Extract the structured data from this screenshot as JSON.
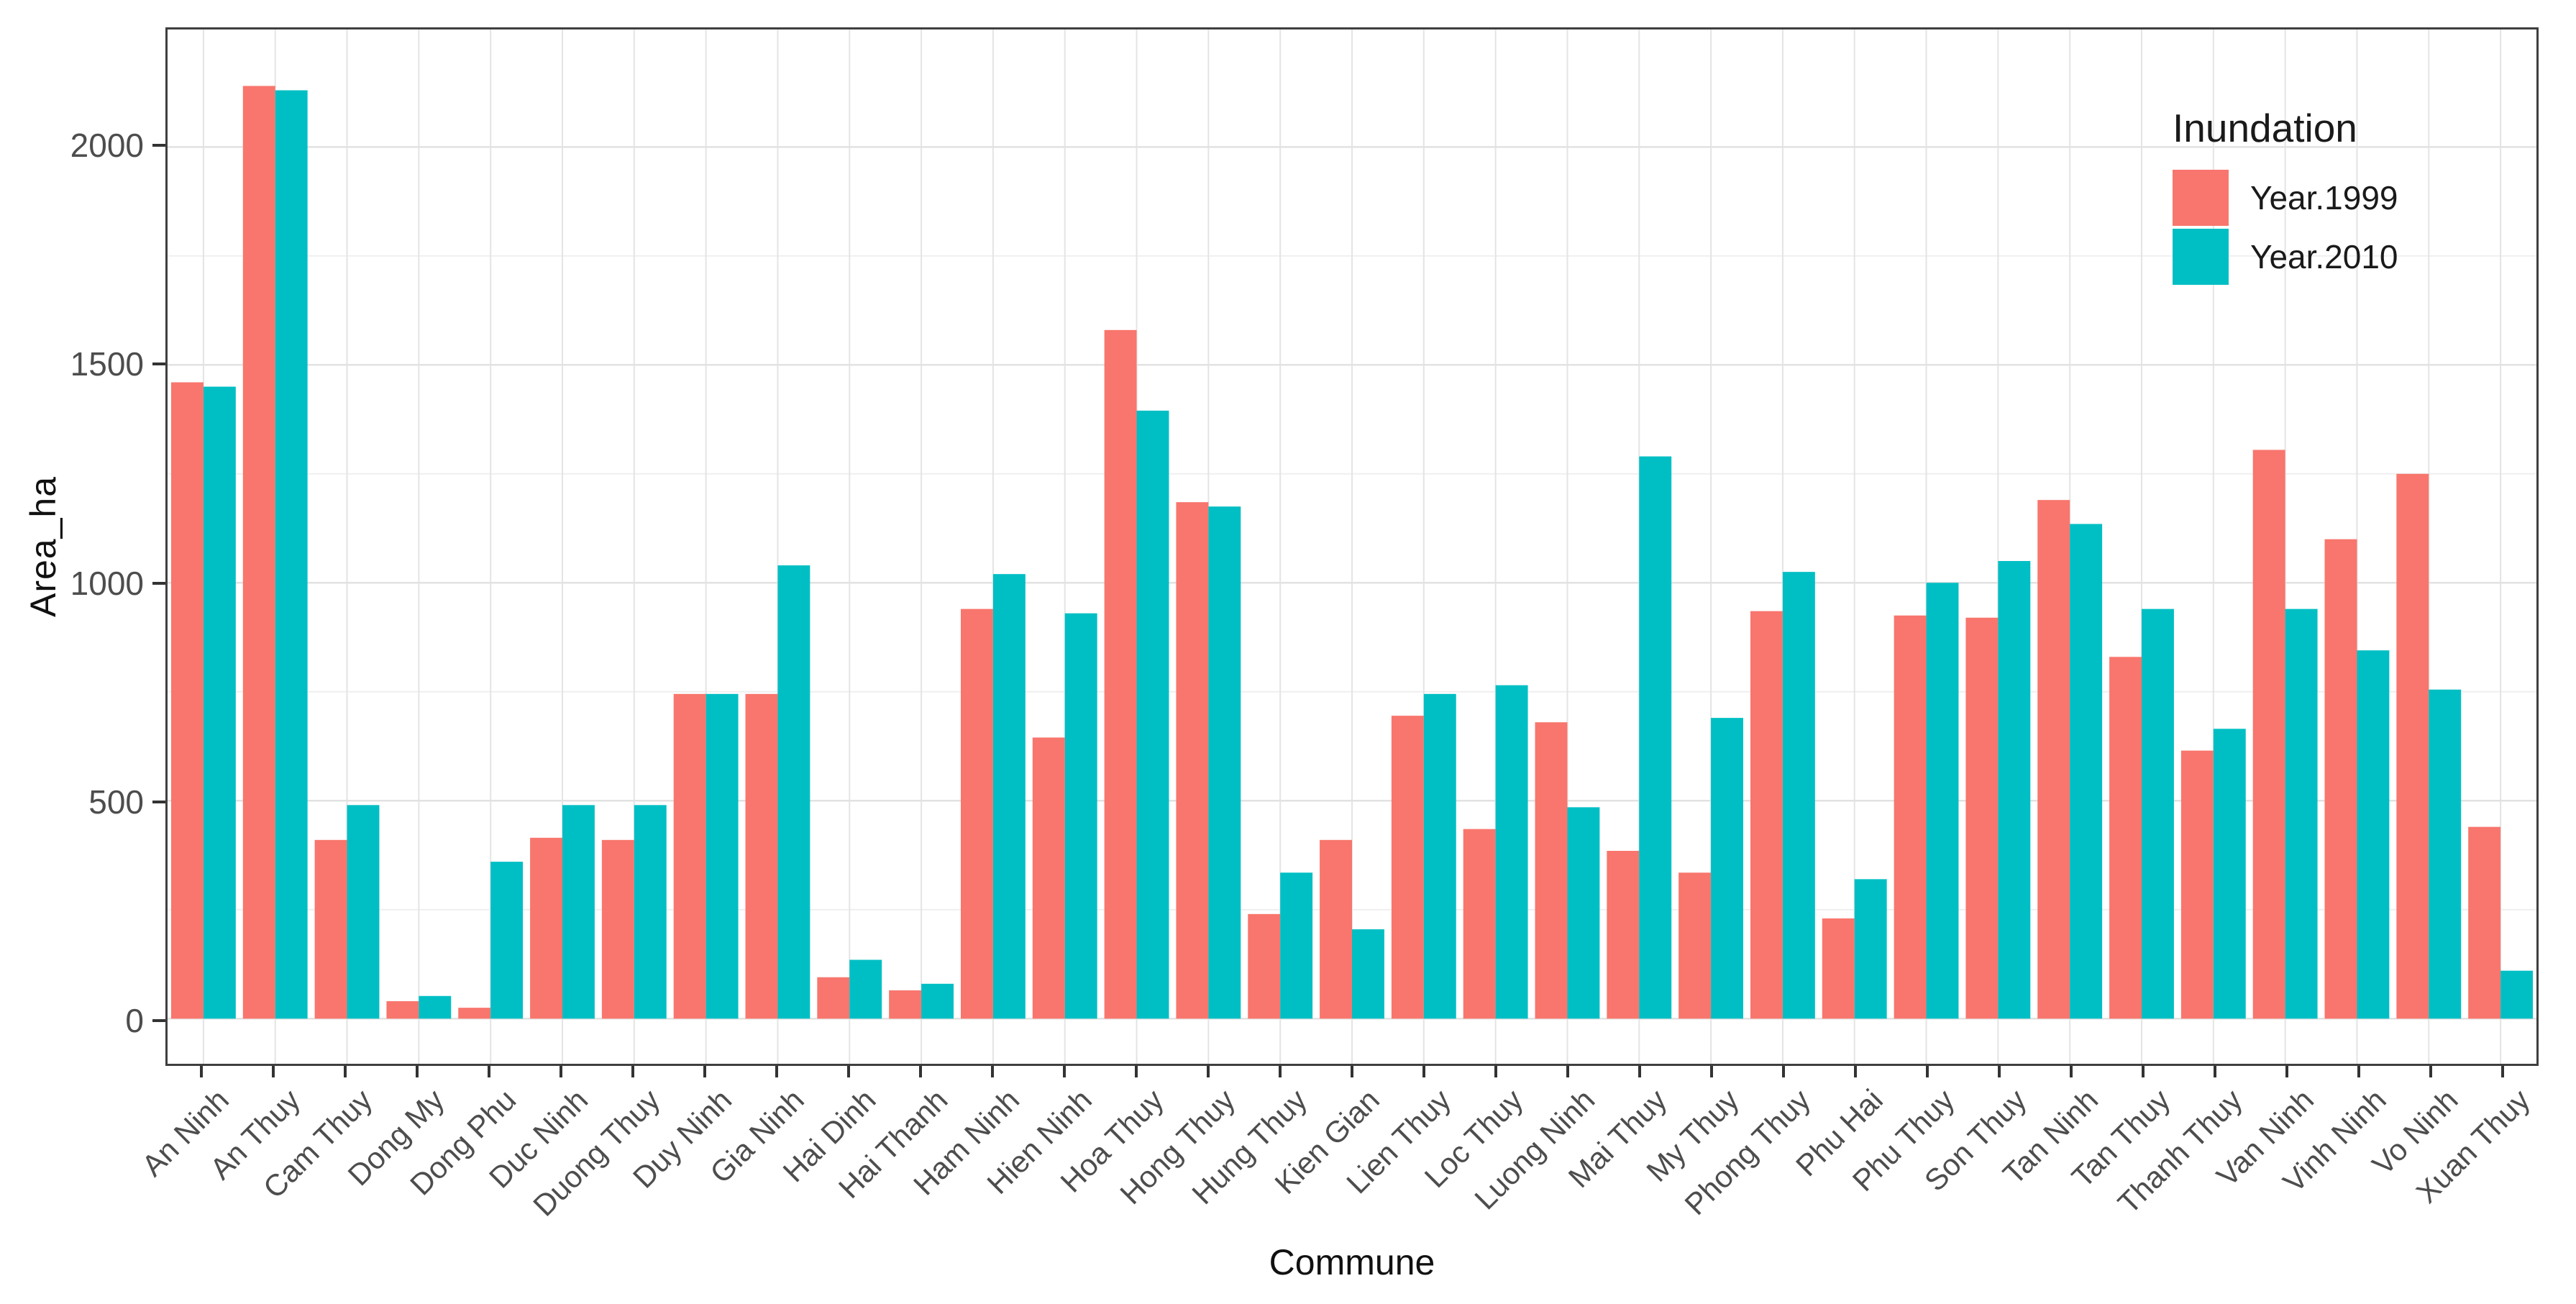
{
  "chart_data": {
    "type": "bar",
    "title": "",
    "xlabel": "Commune",
    "ylabel": "Area_ha",
    "legend_title": "Inundation",
    "legend_position": "top-right-inside",
    "grid": true,
    "ylim": [
      0,
      2269
    ],
    "yticks": [
      0,
      500,
      1000,
      1500,
      2000
    ],
    "yticks_minor": [
      250,
      750,
      1250,
      1750
    ],
    "categories": [
      "An Ninh",
      "An Thuy",
      "Cam Thuy",
      "Dong My",
      "Dong Phu",
      "Duc Ninh",
      "Duong Thuy",
      "Duy Ninh",
      "Gia Ninh",
      "Hai Dinh",
      "Hai Thanh",
      "Ham Ninh",
      "Hien Ninh",
      "Hoa Thuy",
      "Hong Thuy",
      "Hung Thuy",
      "Kien Gian",
      "Lien Thuy",
      "Loc Thuy",
      "Luong Ninh",
      "Mai Thuy",
      "My Thuy",
      "Phong Thuy",
      "Phu Hai",
      "Phu Thuy",
      "Son Thuy",
      "Tan Ninh",
      "Tan Thuy",
      "Thanh Thuy",
      "Van Ninh",
      "Vinh Ninh",
      "Vo Ninh",
      "Xuan Thuy"
    ],
    "series": [
      {
        "name": "Year.1999",
        "color": "#F8766D",
        "values": [
          1460,
          2140,
          410,
          40,
          25,
          415,
          410,
          745,
          745,
          95,
          65,
          940,
          645,
          1580,
          1185,
          240,
          410,
          695,
          435,
          680,
          385,
          335,
          935,
          230,
          925,
          920,
          1190,
          830,
          615,
          1305,
          1100,
          1250,
          440
        ]
      },
      {
        "name": "Year.2010",
        "color": "#00BFC4",
        "values": [
          1450,
          2130,
          490,
          52,
          360,
          490,
          490,
          745,
          1040,
          135,
          80,
          1020,
          930,
          1395,
          1175,
          335,
          205,
          745,
          765,
          485,
          1290,
          690,
          1025,
          320,
          1000,
          1050,
          1135,
          940,
          665,
          940,
          845,
          755,
          110
        ]
      }
    ],
    "grid_colors": {
      "major": "#E2E2E2",
      "minor": "#EFEFEF",
      "vertical": "#E4E4E4"
    }
  }
}
